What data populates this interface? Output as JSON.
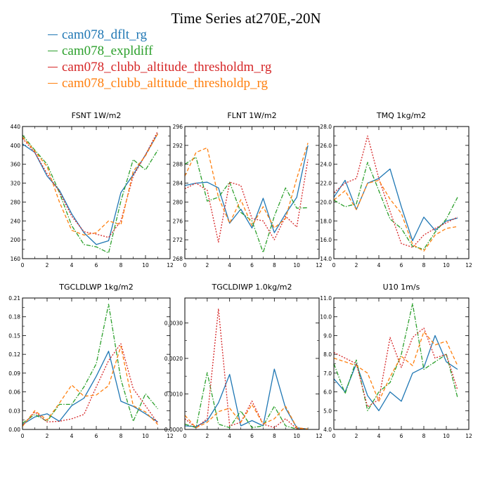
{
  "page": {
    "title": "Time Series at270E,-20N",
    "legend": [
      {
        "name": "cam078_dflt_rg",
        "color": "#1f77b4"
      },
      {
        "name": "cam078_expldiff",
        "color": "#2ca02c"
      },
      {
        "name": "cam078_clubb_altitude_thresholdm_rg",
        "color": "#d62728"
      },
      {
        "name": "cam078_clubb_altitude_thresholdp_rg",
        "color": "#ff7f0e"
      }
    ]
  },
  "chart_data": [
    {
      "type": "line",
      "title": "FSNT   1W/m2",
      "x": [
        0,
        1,
        2,
        3,
        4,
        5,
        6,
        7,
        8,
        9,
        10,
        11
      ],
      "xlim": [
        0,
        12
      ],
      "xticks": [
        0,
        2,
        4,
        6,
        8,
        10,
        12
      ],
      "ylim": [
        160,
        440
      ],
      "yticks": [
        160,
        200,
        240,
        280,
        320,
        360,
        400,
        440
      ],
      "ytick_labels": [
        "160",
        "200",
        "240",
        "280",
        "320",
        "360",
        "400",
        "440"
      ],
      "series": [
        {
          "name": "cam078_dflt_rg",
          "dash": "solid",
          "values": [
            403,
            385,
            335,
            305,
            255,
            215,
            190,
            198,
            300,
            338,
            380,
            425
          ]
        },
        {
          "name": "cam078_expldiff",
          "dash": "dashdot",
          "values": [
            422,
            390,
            360,
            300,
            230,
            190,
            185,
            172,
            282,
            370,
            348,
            390
          ]
        },
        {
          "name": "cam078_clubb_altitude_thresholdm_rg",
          "dash": "dot",
          "values": [
            415,
            385,
            340,
            302,
            250,
            217,
            212,
            205,
            240,
            335,
            380,
            430
          ]
        },
        {
          "name": "cam078_clubb_altitude_thresholdp_rg",
          "dash": "dash",
          "values": [
            418,
            388,
            355,
            280,
            220,
            210,
            215,
            240,
            232,
            345,
            378,
            425
          ]
        }
      ]
    },
    {
      "type": "line",
      "title": "FLNT   1W/m2",
      "x": [
        0,
        1,
        2,
        3,
        4,
        5,
        6,
        7,
        8,
        9,
        10,
        11
      ],
      "xlim": [
        0,
        12
      ],
      "xticks": [
        0,
        2,
        4,
        6,
        8,
        10,
        12
      ],
      "ylim": [
        268,
        296
      ],
      "yticks": [
        268,
        272,
        276,
        280,
        284,
        288,
        292,
        296
      ],
      "ytick_labels": [
        "268",
        "272",
        "276",
        "280",
        "284",
        "288",
        "292",
        "296"
      ],
      "series": [
        {
          "name": "cam078_dflt_rg",
          "dash": "solid",
          "values": [
            283.5,
            284,
            284.2,
            283,
            275.5,
            278.5,
            274.5,
            280.8,
            273.5,
            277.5,
            281,
            292
          ]
        },
        {
          "name": "cam078_expldiff",
          "dash": "dashdot",
          "values": [
            288,
            289.5,
            280.2,
            281,
            284.2,
            277.8,
            276,
            269.3,
            277,
            283,
            278.7,
            278.8
          ]
        },
        {
          "name": "cam078_clubb_altitude_thresholdm_rg",
          "dash": "dot",
          "values": [
            282.8,
            284,
            282.5,
            271.5,
            284.2,
            283.5,
            276.5,
            276,
            272,
            277,
            274.7,
            289
          ]
        },
        {
          "name": "cam078_clubb_altitude_thresholdp_rg",
          "dash": "dash",
          "values": [
            285.5,
            290.5,
            291.5,
            281,
            275.5,
            280.5,
            275,
            279,
            274.5,
            276.5,
            285,
            292.5
          ]
        }
      ]
    },
    {
      "type": "line",
      "title": "TMQ   1kg/m2",
      "x": [
        0,
        1,
        2,
        3,
        4,
        5,
        6,
        7,
        8,
        9,
        10,
        11
      ],
      "xlim": [
        0,
        12
      ],
      "xticks": [
        0,
        2,
        4,
        6,
        8,
        10,
        12
      ],
      "ylim": [
        14,
        28
      ],
      "yticks": [
        14,
        16,
        18,
        20,
        22,
        24,
        26,
        28
      ],
      "ytick_labels": [
        "14.0",
        "16.0",
        "18.0",
        "20.0",
        "22.0",
        "24.0",
        "26.0",
        "28.0"
      ],
      "series": [
        {
          "name": "cam078_dflt_rg",
          "dash": "solid",
          "values": [
            20.5,
            22.3,
            19.2,
            22,
            22.5,
            23.5,
            19.5,
            15.9,
            18.4,
            17,
            18,
            18.3
          ]
        },
        {
          "name": "cam078_expldiff",
          "dash": "dashdot",
          "values": [
            20.2,
            19.5,
            19.8,
            24.2,
            21.2,
            18.2,
            17.2,
            15.3,
            15,
            16.8,
            18.2,
            20.5
          ]
        },
        {
          "name": "cam078_clubb_altitude_thresholdm_rg",
          "dash": "dot",
          "values": [
            21,
            22,
            22.5,
            27,
            22.5,
            19,
            15.6,
            15.2,
            16.5,
            17.2,
            17.8,
            18.4
          ]
        },
        {
          "name": "cam078_clubb_altitude_thresholdp_rg",
          "dash": "dash",
          "values": [
            20.2,
            21.2,
            19.2,
            22,
            22.3,
            20.3,
            18.8,
            15.5,
            14.8,
            16.5,
            17.2,
            17.4
          ]
        }
      ]
    },
    {
      "type": "line",
      "title": "TGCLDLWP   1kg/m2",
      "x": [
        0,
        1,
        2,
        3,
        4,
        5,
        6,
        7,
        8,
        9,
        10,
        11
      ],
      "xlim": [
        0,
        12
      ],
      "xticks": [
        0,
        2,
        4,
        6,
        8,
        10,
        12
      ],
      "ylim": [
        0,
        0.21
      ],
      "yticks": [
        0,
        0.03,
        0.06,
        0.09,
        0.12,
        0.15,
        0.18,
        0.21
      ],
      "ytick_labels": [
        "0.00",
        "0.03",
        "0.06",
        "0.09",
        "0.12",
        "0.15",
        "0.18",
        "0.21"
      ],
      "series": [
        {
          "name": "cam078_dflt_rg",
          "dash": "solid",
          "values": [
            0.008,
            0.02,
            0.025,
            0.013,
            0.038,
            0.05,
            0.085,
            0.125,
            0.045,
            0.037,
            0.025,
            0.012
          ]
        },
        {
          "name": "cam078_expldiff",
          "dash": "dashdot",
          "values": [
            0.01,
            0.024,
            0.013,
            0.04,
            0.04,
            0.068,
            0.105,
            0.2,
            0.08,
            0.013,
            0.057,
            0.033
          ]
        },
        {
          "name": "cam078_clubb_altitude_thresholdm_rg",
          "dash": "dot",
          "values": [
            0.006,
            0.028,
            0.012,
            0.013,
            0.017,
            0.024,
            0.068,
            0.11,
            0.137,
            0.065,
            0.038,
            0.01
          ]
        },
        {
          "name": "cam078_clubb_altitude_thresholdp_rg",
          "dash": "dash",
          "values": [
            0.005,
            0.03,
            0.015,
            0.042,
            0.071,
            0.053,
            0.055,
            0.07,
            0.133,
            0.038,
            0.028,
            0.008
          ]
        }
      ]
    },
    {
      "type": "line",
      "title": "TGCLDIWP   1.0kg/m2",
      "x": [
        0,
        1,
        2,
        3,
        4,
        5,
        6,
        7,
        8,
        9,
        10,
        11
      ],
      "xlim": [
        0,
        12
      ],
      "xticks": [
        0,
        2,
        4,
        6,
        8,
        10,
        12
      ],
      "ylim": [
        0,
        0.0037
      ],
      "yticks": [
        0,
        0.001,
        0.002,
        0.003
      ],
      "ytick_labels": [
        "0.0000",
        "0.0010",
        "0.0020",
        "0.0030"
      ],
      "series": [
        {
          "name": "cam078_dflt_rg",
          "dash": "solid",
          "values": [
            0.0001,
            8e-05,
            0.00025,
            0.00075,
            0.00155,
            0.0001,
            0.00025,
            0.0001,
            0.0017,
            0.0006,
            5e-05,
            1e-05
          ]
        },
        {
          "name": "cam078_expldiff",
          "dash": "dashdot",
          "values": [
            0.00015,
            5e-05,
            0.0016,
            0.00015,
            5e-05,
            0.00052,
            5e-05,
            0.0001,
            0.00065,
            0.0001,
            1e-05,
            1e-05
          ]
        },
        {
          "name": "cam078_clubb_altitude_thresholdm_rg",
          "dash": "dot",
          "values": [
            0.0003,
            5e-05,
            0.0003,
            0.0034,
            0.0001,
            0.0002,
            0.0008,
            0.00015,
            5e-05,
            0.0003,
            2e-05,
            1e-05
          ]
        },
        {
          "name": "cam078_clubb_altitude_thresholdp_rg",
          "dash": "dash",
          "values": [
            0.0004,
            5e-05,
            0.0002,
            0.0005,
            0.0006,
            0.0002,
            0.0007,
            0.00015,
            0.0003,
            0.00065,
            5e-05,
            1e-05
          ]
        }
      ]
    },
    {
      "type": "line",
      "title": "U10   1m/s",
      "x": [
        0,
        1,
        2,
        3,
        4,
        5,
        6,
        7,
        8,
        9,
        10,
        11
      ],
      "xlim": [
        0,
        12
      ],
      "xticks": [
        0,
        2,
        4,
        6,
        8,
        10,
        12
      ],
      "ylim": [
        4,
        11
      ],
      "yticks": [
        4,
        5,
        6,
        7,
        8,
        9,
        10,
        11
      ],
      "ytick_labels": [
        "4.0",
        "5.0",
        "6.0",
        "7.0",
        "8.0",
        "9.0",
        "10.0",
        "11.0"
      ],
      "series": [
        {
          "name": "cam078_dflt_rg",
          "dash": "solid",
          "values": [
            6.7,
            6.0,
            7.5,
            5.8,
            5.0,
            6.0,
            5.5,
            7.0,
            7.3,
            9.0,
            7.6,
            7.2
          ]
        },
        {
          "name": "cam078_expldiff",
          "dash": "dashdot",
          "values": [
            7.5,
            5.9,
            7.7,
            5.0,
            6.0,
            6.5,
            8.0,
            10.7,
            7.2,
            7.6,
            8.0,
            5.7
          ]
        },
        {
          "name": "cam078_clubb_altitude_thresholdm_rg",
          "dash": "dot",
          "values": [
            8.1,
            7.8,
            7.5,
            5.2,
            5.6,
            8.9,
            7.3,
            8.9,
            9.4,
            7.8,
            8.0,
            6.1
          ]
        },
        {
          "name": "cam078_clubb_altitude_thresholdp_rg",
          "dash": "dash",
          "values": [
            7.8,
            7.6,
            7.4,
            7.0,
            5.5,
            6.8,
            7.9,
            7.4,
            9.2,
            8.5,
            8.7,
            7.4
          ]
        }
      ]
    }
  ]
}
